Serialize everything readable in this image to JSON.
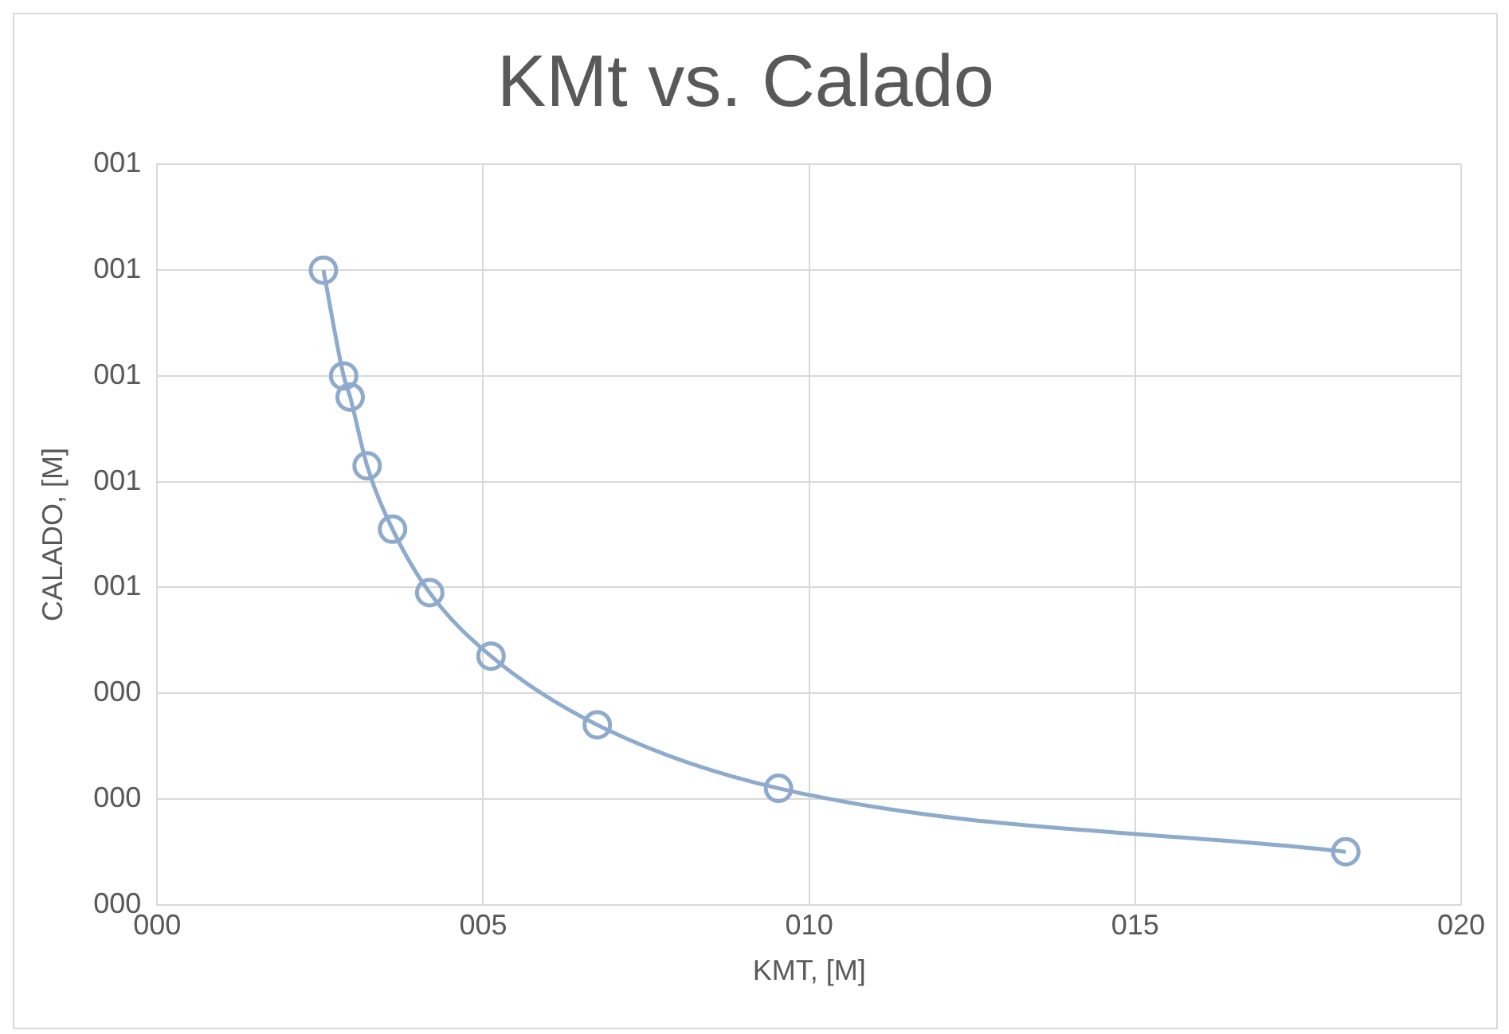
{
  "chart_data": {
    "type": "line",
    "title": "KMt vs. Calado",
    "xlabel": "KMT, [M]",
    "ylabel": "CALADO, [M]",
    "x": [
      2.55,
      2.86,
      2.96,
      3.22,
      3.61,
      4.18,
      5.12,
      6.75,
      9.53,
      18.23
    ],
    "series": [
      {
        "color": "#8eaacc",
        "values": [
          1.2,
          1.0,
          0.96,
          0.83,
          0.71,
          0.59,
          0.47,
          0.34,
          0.22,
          0.1
        ]
      }
    ],
    "xlim": [
      0,
      20
    ],
    "xticks": [
      {
        "value": 0,
        "label": "000"
      },
      {
        "value": 5,
        "label": "005"
      },
      {
        "value": 10,
        "label": "010"
      },
      {
        "value": 15,
        "label": "015"
      },
      {
        "value": 20,
        "label": "020"
      }
    ],
    "ylim": [
      0,
      1.4
    ],
    "yticks": [
      {
        "value": 0,
        "label": "000"
      },
      {
        "value": 0.2,
        "label": "000"
      },
      {
        "value": 0.4,
        "label": "000"
      },
      {
        "value": 0.6,
        "label": "001"
      },
      {
        "value": 0.8,
        "label": "001"
      },
      {
        "value": 1.0,
        "label": "001"
      },
      {
        "value": 1.2,
        "label": "001"
      },
      {
        "value": 1.4,
        "label": "001"
      }
    ],
    "grid": true,
    "legend": false,
    "marker": "circle",
    "line_style": "solid"
  }
}
